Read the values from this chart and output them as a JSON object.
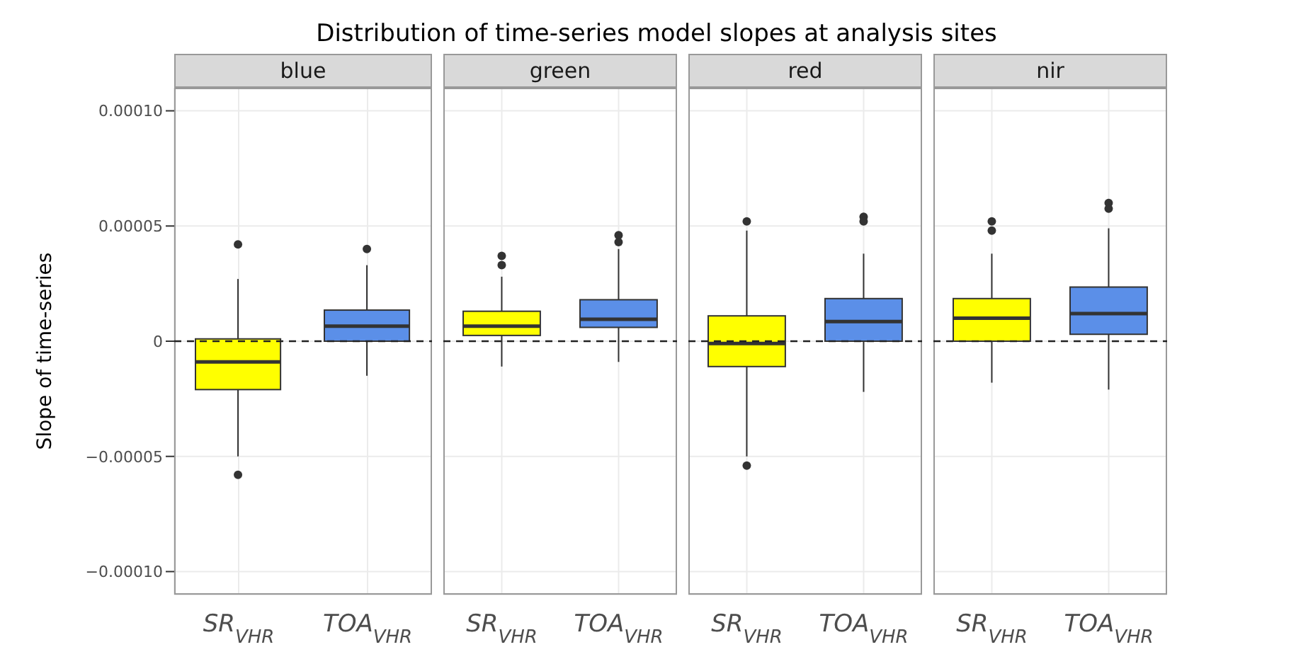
{
  "chart_data": [
    {
      "type": "box",
      "title": "Distribution of time-series model slopes at analysis sites",
      "subtitle": "blue",
      "ylabel": "Slope of time-series",
      "categories": [
        "SR$_{VHR}$",
        "TOA$_{VHR}$"
      ],
      "colors": [
        "#ffff00",
        "#5b8fe8"
      ],
      "boxes": [
        {
          "low": -5e-05,
          "q1": -2.1e-05,
          "median": -9e-06,
          "q3": 1e-06,
          "high": 2.7e-05,
          "outliers": [
            4.2e-05,
            -5.8e-05
          ]
        },
        {
          "low": -1.5e-05,
          "q1": 0.0,
          "median": 6.5e-06,
          "q3": 1.35e-05,
          "high": 3.3e-05,
          "outliers": [
            4e-05
          ]
        }
      ],
      "ylim": [
        -0.00011,
        0.00011
      ],
      "yticks": [
        {
          "value": -0.0001,
          "label": "−0.00010"
        },
        {
          "value": -5e-05,
          "label": "−0.00005"
        },
        0,
        {
          "value": 5e-05,
          "label": "0.00005"
        },
        {
          "value": 0.0001,
          "label": "0.00010"
        }
      ],
      "grid": true,
      "ref_lines": [
        {
          "axis": "y",
          "value": 0,
          "line_style": "dashed"
        }
      ]
    },
    {
      "type": "box",
      "subtitle": "green",
      "categories": [
        "SR$_{VHR}$",
        "TOA$_{VHR}$"
      ],
      "colors": [
        "#ffff00",
        "#5b8fe8"
      ],
      "boxes": [
        {
          "low": -1.1e-05,
          "q1": 2.5e-06,
          "median": 6.5e-06,
          "q3": 1.3e-05,
          "high": 2.8e-05,
          "outliers": [
            3.7e-05,
            3.3e-05
          ]
        },
        {
          "low": -9e-06,
          "q1": 6e-06,
          "median": 9.5e-06,
          "q3": 1.8e-05,
          "high": 4e-05,
          "outliers": [
            4.6e-05,
            4.3e-05
          ]
        }
      ],
      "ylim": [
        -0.00011,
        0.00011
      ],
      "yticks": [
        -0.0001,
        -5e-05,
        0,
        5e-05,
        0.0001
      ],
      "grid": true,
      "tick_labels": "x",
      "ref_lines": [
        {
          "axis": "y",
          "value": 0,
          "line_style": "dashed"
        }
      ]
    },
    {
      "type": "box",
      "subtitle": "red",
      "categories": [
        "SR$_{VHR}$",
        "TOA$_{VHR}$"
      ],
      "colors": [
        "#ffff00",
        "#5b8fe8"
      ],
      "boxes": [
        {
          "low": -5e-05,
          "q1": -1.1e-05,
          "median": -1e-06,
          "q3": 1.1e-05,
          "high": 4.8e-05,
          "outliers": [
            5.2e-05,
            -5.4e-05
          ]
        },
        {
          "low": -2.2e-05,
          "q1": 0.0,
          "median": 8.5e-06,
          "q3": 1.85e-05,
          "high": 3.8e-05,
          "outliers": [
            5.4e-05,
            5.2e-05
          ]
        }
      ],
      "ylim": [
        -0.00011,
        0.00011
      ],
      "yticks": [
        -0.0001,
        -5e-05,
        0,
        5e-05,
        0.0001
      ],
      "grid": true,
      "tick_labels": "x",
      "ref_lines": [
        {
          "axis": "y",
          "value": 0,
          "line_style": "dashed"
        }
      ]
    },
    {
      "type": "box",
      "subtitle": "nir",
      "categories": [
        "SR$_{VHR}$",
        "TOA$_{VHR}$"
      ],
      "colors": [
        "#ffff00",
        "#5b8fe8"
      ],
      "boxes": [
        {
          "low": -1.8e-05,
          "q1": 0.0,
          "median": 1e-05,
          "q3": 1.85e-05,
          "high": 3.8e-05,
          "outliers": [
            5.2e-05,
            4.8e-05
          ]
        },
        {
          "low": -2.1e-05,
          "q1": 3e-06,
          "median": 1.2e-05,
          "q3": 2.35e-05,
          "high": 4.9e-05,
          "outliers": [
            6e-05,
            5.75e-05
          ]
        }
      ],
      "ylim": [
        -0.00011,
        0.00011
      ],
      "yticks": [
        -0.0001,
        -5e-05,
        0,
        5e-05,
        0.0001
      ],
      "grid": true,
      "tick_labels": "x",
      "ref_lines": [
        {
          "axis": "y",
          "value": 0,
          "line_style": "dashed"
        }
      ]
    }
  ]
}
